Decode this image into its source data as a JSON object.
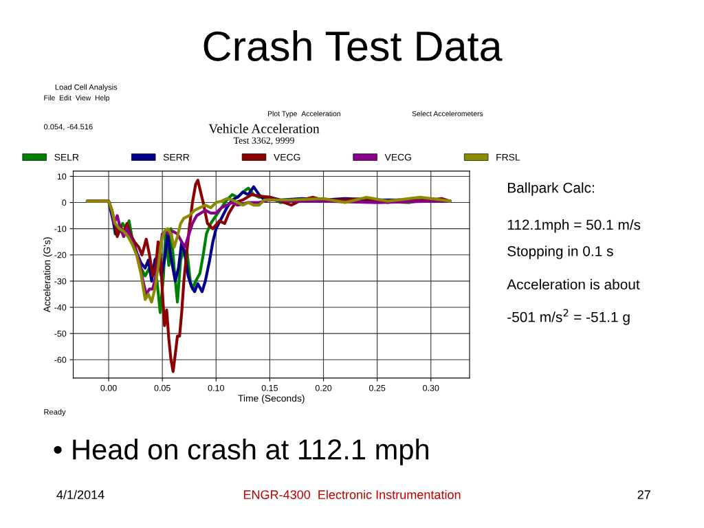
{
  "chart_data": {
    "type": "line",
    "title": "Vehicle Acceleration",
    "subtitle": "Test 3362, 9999",
    "xlabel": "Time (Seconds)",
    "ylabel": "Acceleration (G's)",
    "xlim": [
      -0.033,
      0.336
    ],
    "ylim": [
      -67,
      12
    ],
    "xticks": [
      {
        "value": 0,
        "label": "0.00"
      },
      {
        "value": 0.05,
        "label": "0.05"
      },
      {
        "value": 0.1,
        "label": "0.10"
      },
      {
        "value": 0.15,
        "label": "0.15"
      },
      {
        "value": 0.2,
        "label": "0.20"
      },
      {
        "value": 0.25,
        "label": "0.25"
      },
      {
        "value": 0.3,
        "label": "0.30"
      }
    ],
    "yticks": [
      -60,
      -50,
      -40,
      -30,
      -20,
      -10,
      0,
      10
    ],
    "grid": true,
    "legend": "top",
    "marker": "none",
    "line_style": "solid",
    "annotations": [
      "Crash Test Data",
      "Load Cell Analysis",
      "File  Edit  View  Help",
      "Plot Type",
      "Acceleration",
      "Select Accelerometers",
      "0.054, -64.516",
      "Ready",
      "Ballpark Calc:",
      "112.1mph = 50.1 m/s",
      "Stopping in 0.1 s",
      "Acceleration is about",
      "-501 m/s$^{2}$ = -51.1 g",
      "• Head on crash at 112.1 mph",
      "4/1/2014",
      "ENGR-4300  Electronic Instrumentation",
      "27"
    ],
    "series": [
      {
        "name": "SELR",
        "color": "#008000",
        "x": [
          -0.02,
          0,
          0.003,
          0.006,
          0.009,
          0.013,
          0.016,
          0.019,
          0.022,
          0.026,
          0.03,
          0.034,
          0.038,
          0.042,
          0.045,
          0.048,
          0.051,
          0.053,
          0.056,
          0.058,
          0.061,
          0.064,
          0.067,
          0.07,
          0.073,
          0.076,
          0.078,
          0.081,
          0.085,
          0.088,
          0.091,
          0.095,
          0.1,
          0.105,
          0.11,
          0.115,
          0.12,
          0.125,
          0.13,
          0.135,
          0.14,
          0.15,
          0.16,
          0.18,
          0.2,
          0.22,
          0.25,
          0.28,
          0.3,
          0.318
        ],
        "values": [
          0.5,
          0.5,
          -3,
          -12,
          -12,
          -8,
          -10,
          -7,
          -14,
          -19,
          -25,
          -28,
          -25,
          -25,
          -30,
          -42,
          -28,
          -12,
          -24,
          -10,
          -25,
          -38,
          -22,
          -18,
          -19,
          -30,
          -33,
          -30,
          -27,
          -20,
          -12,
          -8,
          -5,
          -2,
          1,
          3,
          2,
          4,
          5.5,
          3,
          2,
          2,
          0,
          1,
          1,
          1,
          0.5,
          0,
          1.5,
          0.5
        ]
      },
      {
        "name": "SERR",
        "color": "#00008b",
        "x": [
          -0.02,
          0,
          0.003,
          0.007,
          0.01,
          0.014,
          0.018,
          0.022,
          0.026,
          0.03,
          0.034,
          0.037,
          0.04,
          0.043,
          0.046,
          0.049,
          0.052,
          0.055,
          0.058,
          0.062,
          0.065,
          0.068,
          0.071,
          0.074,
          0.077,
          0.08,
          0.083,
          0.087,
          0.09,
          0.094,
          0.097,
          0.1,
          0.105,
          0.11,
          0.115,
          0.12,
          0.125,
          0.13,
          0.135,
          0.14,
          0.145,
          0.15,
          0.16,
          0.18,
          0.2,
          0.22,
          0.25,
          0.28,
          0.3,
          0.318
        ],
        "values": [
          0.5,
          0.5,
          -5,
          -12,
          -10,
          -12,
          -10,
          -14,
          -19,
          -23,
          -25,
          -22,
          -30,
          -22,
          -20,
          -28,
          -22,
          -12,
          -21,
          -30,
          -25,
          -15,
          -20,
          -28,
          -32,
          -34,
          -31,
          -34,
          -30,
          -22,
          -15,
          -10,
          -6,
          -2,
          1,
          2,
          4,
          3,
          6,
          3,
          1,
          2,
          1,
          1.5,
          1,
          1.5,
          1,
          1,
          0.5,
          0.5
        ]
      },
      {
        "name": "VECG",
        "color": "#8b0000",
        "x": [
          -0.02,
          0,
          0.003,
          0.006,
          0.008,
          0.011,
          0.014,
          0.017,
          0.02,
          0.024,
          0.028,
          0.031,
          0.035,
          0.038,
          0.041,
          0.044,
          0.046,
          0.048,
          0.05,
          0.052,
          0.054,
          0.056,
          0.058,
          0.06,
          0.062,
          0.064,
          0.066,
          0.068,
          0.07,
          0.072,
          0.075,
          0.078,
          0.081,
          0.083,
          0.088,
          0.092,
          0.097,
          0.103,
          0.108,
          0.112,
          0.118,
          0.125,
          0.133,
          0.14,
          0.15,
          0.16,
          0.17,
          0.18,
          0.19,
          0.2,
          0.22,
          0.24,
          0.25,
          0.26,
          0.27,
          0.28,
          0.3,
          0.31,
          0.318
        ],
        "values": [
          0.5,
          0.5,
          -3,
          -8,
          -13,
          -9,
          -12,
          -8,
          -12,
          -15,
          -17,
          -20,
          -14,
          -20,
          -28,
          -24,
          -15,
          -19,
          -34,
          -47,
          -41,
          -52,
          -60,
          -64.5,
          -58,
          -51,
          -51,
          -42,
          -30,
          -22,
          -10,
          0,
          7,
          8.5,
          0,
          -8,
          -10,
          -7,
          -8,
          -4,
          0,
          1,
          3,
          2.5,
          2,
          0.5,
          -1,
          1,
          2,
          1,
          1,
          1.5,
          1,
          0,
          1,
          0.5,
          1,
          1.5,
          0.5
        ]
      },
      {
        "name": "VECG",
        "color": "#8b008b",
        "x": [
          -0.02,
          0,
          0.003,
          0.005,
          0.008,
          0.011,
          0.014,
          0.017,
          0.02,
          0.025,
          0.029,
          0.032,
          0.035,
          0.038,
          0.041,
          0.044,
          0.047,
          0.05,
          0.053,
          0.056,
          0.06,
          0.064,
          0.068,
          0.071,
          0.074,
          0.078,
          0.082,
          0.086,
          0.09,
          0.095,
          0.1,
          0.105,
          0.11,
          0.115,
          0.12,
          0.13,
          0.14,
          0.15,
          0.17,
          0.2,
          0.25,
          0.3,
          0.318
        ],
        "values": [
          0.5,
          0.5,
          -3,
          -8,
          -5,
          -10,
          -13,
          -10,
          -13,
          -18,
          -23,
          -30,
          -35,
          -33,
          -33,
          -28,
          -20,
          -12,
          -11,
          -12,
          -11,
          -12,
          -15,
          -17,
          -13,
          -8,
          -5,
          -4,
          -3,
          -4,
          -4,
          -2,
          -1,
          0,
          -1,
          0,
          0,
          1,
          0.5,
          0.5,
          0,
          0.5,
          0.5
        ]
      },
      {
        "name": "FRSL",
        "color": "#8b8b00",
        "x": [
          -0.02,
          0,
          0.003,
          0.006,
          0.01,
          0.014,
          0.018,
          0.022,
          0.026,
          0.03,
          0.034,
          0.037,
          0.04,
          0.043,
          0.046,
          0.049,
          0.052,
          0.055,
          0.058,
          0.061,
          0.064,
          0.067,
          0.07,
          0.075,
          0.08,
          0.085,
          0.09,
          0.095,
          0.1,
          0.105,
          0.11,
          0.115,
          0.12,
          0.125,
          0.13,
          0.135,
          0.14,
          0.145,
          0.15,
          0.17,
          0.2,
          0.22,
          0.24,
          0.26,
          0.29,
          0.31,
          0.318
        ],
        "values": [
          0.5,
          0.5,
          -3,
          -8,
          -10,
          -11,
          -13,
          -16,
          -20,
          -27,
          -37,
          -35,
          -38,
          -33,
          -25,
          -15,
          -11,
          -10,
          -12,
          -17,
          -13,
          -8,
          -6,
          -5,
          -3,
          -2,
          -1,
          -2,
          0,
          0.5,
          1.5,
          1,
          0,
          -1,
          0,
          -1,
          -1,
          1,
          1,
          1,
          1.5,
          0,
          2,
          0.5,
          2,
          1,
          0.5
        ]
      }
    ]
  }
}
